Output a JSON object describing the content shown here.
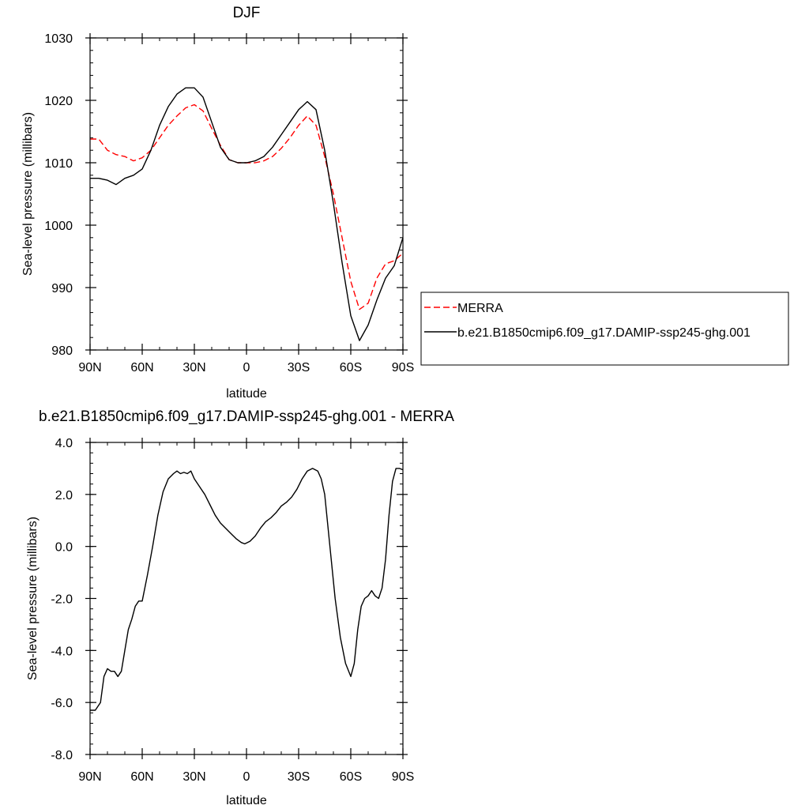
{
  "chart_data": [
    {
      "type": "line",
      "title": "DJF",
      "xlabel": "latitude",
      "ylabel": "Sea-level pressure (millibars)",
      "xlim": [
        90,
        -90
      ],
      "ylim": [
        980,
        1030
      ],
      "yticks": [
        980,
        990,
        1000,
        1010,
        1020,
        1030
      ],
      "ytick_labels": [
        "980",
        "990",
        "1000",
        "1010",
        "1020",
        "1030"
      ],
      "xticks": [
        90,
        60,
        30,
        0,
        -30,
        -60,
        -90
      ],
      "xtick_labels": [
        "90N",
        "60N",
        "30N",
        "0",
        "30S",
        "60S",
        "90S"
      ],
      "legend_position": "right",
      "series": [
        {
          "name": "MERRA",
          "color": "#ff0000",
          "style": "dashed",
          "x": [
            90,
            85,
            80,
            75,
            70,
            65,
            60,
            55,
            50,
            45,
            40,
            35,
            30,
            25,
            20,
            15,
            10,
            5,
            0,
            -5,
            -10,
            -15,
            -20,
            -25,
            -30,
            -35,
            -40,
            -45,
            -50,
            -55,
            -60,
            -65,
            -70,
            -75,
            -80,
            -85,
            -90
          ],
          "values": [
            1013.8,
            1013.8,
            1012,
            1011.3,
            1011,
            1010.3,
            1010.8,
            1012,
            1014,
            1016,
            1017.5,
            1018.8,
            1019.3,
            1018.3,
            1015.5,
            1012.8,
            1010.5,
            1010,
            1010,
            1010,
            1010.3,
            1011,
            1012.3,
            1014,
            1016,
            1017.5,
            1016,
            1011,
            1005,
            998,
            991,
            986.5,
            987.5,
            991.5,
            993.8,
            994.3,
            995.5
          ]
        },
        {
          "name": "b.e21.B1850cmip6.f09_g17.DAMIP-ssp245-ghg.001",
          "color": "#000000",
          "style": "solid",
          "x": [
            90,
            85,
            80,
            75,
            70,
            65,
            60,
            55,
            50,
            45,
            40,
            35,
            30,
            25,
            20,
            15,
            10,
            5,
            0,
            -5,
            -10,
            -15,
            -20,
            -25,
            -30,
            -35,
            -40,
            -45,
            -50,
            -55,
            -60,
            -65,
            -70,
            -75,
            -80,
            -85,
            -90
          ],
          "values": [
            1007.5,
            1007.5,
            1007.2,
            1006.5,
            1007.5,
            1008,
            1009,
            1012,
            1016,
            1019,
            1021,
            1022,
            1022,
            1020.5,
            1016.5,
            1012.5,
            1010.5,
            1010,
            1010,
            1010.3,
            1011,
            1012.5,
            1014.5,
            1016.5,
            1018.5,
            1019.8,
            1018.5,
            1012,
            1003.5,
            994,
            985.5,
            981.5,
            984,
            988,
            991.5,
            993.5,
            998
          ]
        }
      ]
    },
    {
      "type": "line",
      "title": "b.e21.B1850cmip6.f09_g17.DAMIP-ssp245-ghg.001 - MERRA",
      "xlabel": "latitude",
      "ylabel": "Sea-level pressure (millibars)",
      "xlim": [
        90,
        -90
      ],
      "ylim": [
        -8,
        4
      ],
      "yticks": [
        -8,
        -6,
        -4,
        -2,
        0,
        2,
        4
      ],
      "ytick_labels": [
        "-8.0",
        "-6.0",
        "-4.0",
        "-2.0",
        "0.0",
        "2.0",
        "4.0"
      ],
      "xticks": [
        90,
        60,
        30,
        0,
        -30,
        -60,
        -90
      ],
      "xtick_labels": [
        "90N",
        "60N",
        "30N",
        "0",
        "30S",
        "60S",
        "90S"
      ],
      "series": [
        {
          "color": "#000000",
          "style": "solid",
          "x": [
            90,
            87,
            84,
            82,
            80,
            78,
            76,
            74,
            72,
            70,
            68,
            66,
            64,
            62,
            60,
            57,
            54,
            51,
            48,
            45,
            42,
            40,
            38,
            36,
            34,
            32,
            30,
            27,
            24,
            21,
            18,
            15,
            12,
            9,
            6,
            3,
            1,
            -2,
            -5,
            -8,
            -11,
            -14,
            -17,
            -20,
            -23,
            -26,
            -29,
            -32,
            -35,
            -38,
            -41,
            -43,
            -45,
            -48,
            -51,
            -54,
            -57,
            -60,
            -62,
            -64,
            -66,
            -68,
            -70,
            -72,
            -74,
            -76,
            -78,
            -80,
            -82,
            -84,
            -86,
            -88,
            -90
          ],
          "values": [
            -6.3,
            -6.3,
            -6,
            -5,
            -4.7,
            -4.8,
            -4.8,
            -5,
            -4.8,
            -4,
            -3.2,
            -2.8,
            -2.3,
            -2.1,
            -2.1,
            -1.1,
            0,
            1.2,
            2.1,
            2.6,
            2.8,
            2.9,
            2.8,
            2.85,
            2.8,
            2.9,
            2.6,
            2.3,
            2,
            1.6,
            1.2,
            0.9,
            0.7,
            0.5,
            0.3,
            0.15,
            0.1,
            0.2,
            0.4,
            0.7,
            0.95,
            1.1,
            1.3,
            1.55,
            1.7,
            1.9,
            2.2,
            2.6,
            2.9,
            3,
            2.9,
            2.6,
            2,
            0,
            -2,
            -3.5,
            -4.5,
            -5,
            -4.5,
            -3.2,
            -2.3,
            -2,
            -1.9,
            -1.7,
            -1.9,
            -2,
            -1.6,
            -0.5,
            1.2,
            2.5,
            3,
            3,
            2.95
          ]
        }
      ]
    }
  ]
}
